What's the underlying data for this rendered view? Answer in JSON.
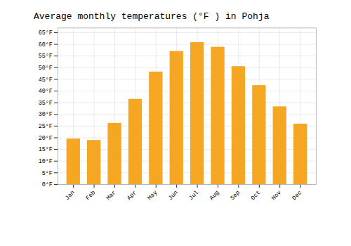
{
  "chart_data": {
    "type": "bar",
    "title": "Average monthly temperatures (°F ) in Pohja",
    "categories": [
      "Jan",
      "Feb",
      "Mar",
      "Apr",
      "May",
      "Jun",
      "Jul",
      "Aug",
      "Sep",
      "Oct",
      "Nov",
      "Dec"
    ],
    "values": [
      19.5,
      18.9,
      26.2,
      36.5,
      48.2,
      57.0,
      60.8,
      58.8,
      50.5,
      42.4,
      33.3,
      25.9
    ],
    "color": "#F5A623",
    "ylim": [
      0,
      67
    ],
    "yticks": [
      {
        "value": 0,
        "label": "0°F"
      },
      {
        "value": 5,
        "label": "5°F"
      },
      {
        "value": 10,
        "label": "10°F"
      },
      {
        "value": 15,
        "label": "15°F"
      },
      {
        "value": 20,
        "label": "20°F"
      },
      {
        "value": 25,
        "label": "25°F"
      },
      {
        "value": 30,
        "label": "30°F"
      },
      {
        "value": 35,
        "label": "35°F"
      },
      {
        "value": 40,
        "label": "40°F"
      },
      {
        "value": 45,
        "label": "45°F"
      },
      {
        "value": 50,
        "label": "50°F"
      },
      {
        "value": 55,
        "label": "55°F"
      },
      {
        "value": 60,
        "label": "60°F"
      },
      {
        "value": 65,
        "label": "65°F"
      }
    ],
    "grid": true
  }
}
